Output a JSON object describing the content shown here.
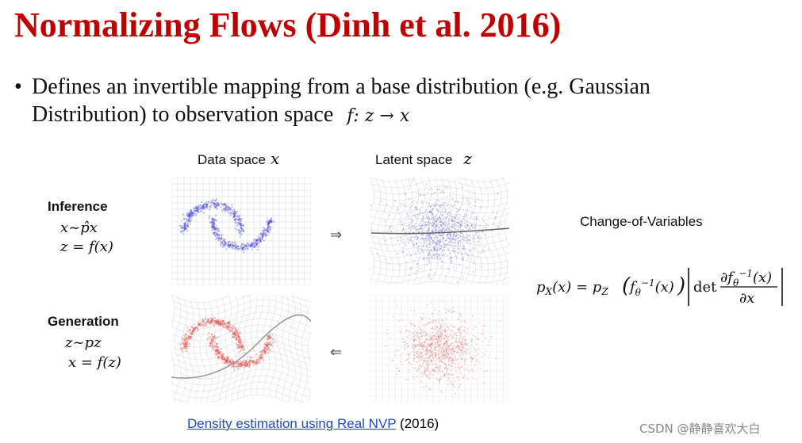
{
  "slide": {
    "title": "Normalizing Flows (Dinh et al. 2016)",
    "bullet_line1": "Defines an invertible mapping from a base distribution (e.g. Gaussian",
    "bullet_line2": "Distribution) to observation space",
    "bullet_math": "f: z → x"
  },
  "figure": {
    "data_space_label": "Data space",
    "data_space_symbol": "x",
    "latent_space_label": "Latent space",
    "latent_space_symbol": "z",
    "inference_label": "Inference",
    "inference_eq1": "x~p̂x",
    "inference_eq2": "z = f(x)",
    "generation_label": "Generation",
    "generation_eq1": "z~pz",
    "generation_eq2": "x = f(z)",
    "arrow_right": "⇒",
    "arrow_left": "⇐",
    "inference_color": "#3b3bdd",
    "generation_color": "#e23a3a"
  },
  "cov": {
    "title": "Change-of-Variables"
  },
  "reference": {
    "link_text": "Density estimation using Real NVP",
    "year": "(2016)"
  },
  "watermark": "CSDN @静静喜欢大白"
}
